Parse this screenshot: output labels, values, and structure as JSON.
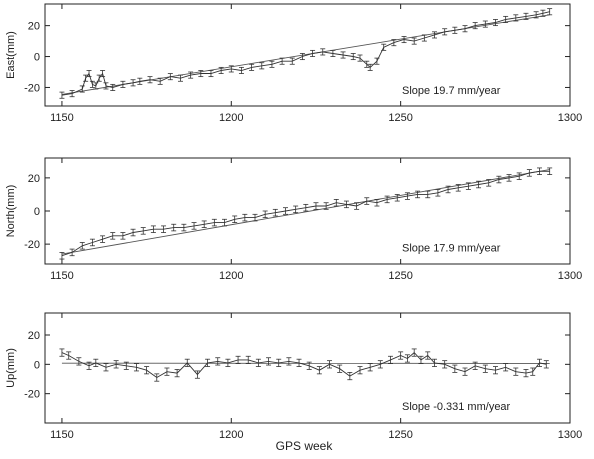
{
  "figure": {
    "xlabel": "GPS week"
  },
  "chart_data": [
    {
      "type": "line",
      "ylabel": "East(mm)",
      "annotation": "Slope 19.7 mm/year",
      "xlim": [
        1145,
        1300
      ],
      "ylim": [
        -32,
        34
      ],
      "xticks": [
        1150,
        1200,
        1250,
        1300
      ],
      "yticks": [
        -20,
        0,
        20
      ],
      "errorbar_mm": 2,
      "series": [
        {
          "role": "observed",
          "x": [
            1150,
            1153,
            1156,
            1157,
            1158,
            1159,
            1160,
            1161,
            1162,
            1163,
            1165,
            1168,
            1171,
            1173,
            1176,
            1179,
            1182,
            1185,
            1188,
            1191,
            1194,
            1197,
            1200,
            1203,
            1206,
            1209,
            1212,
            1215,
            1218,
            1221,
            1224,
            1227,
            1230,
            1233,
            1236,
            1238,
            1240,
            1241,
            1243,
            1245,
            1248,
            1251,
            1254,
            1257,
            1260,
            1263,
            1266,
            1269,
            1272,
            1275,
            1278,
            1281,
            1284,
            1287,
            1290,
            1292,
            1294
          ],
          "y": [
            -25,
            -24,
            -21,
            -14,
            -11,
            -18,
            -19,
            -14,
            -11,
            -19,
            -20,
            -18,
            -17,
            -16,
            -15,
            -16,
            -13,
            -14,
            -12,
            -11,
            -11,
            -9,
            -8,
            -9,
            -7,
            -6,
            -5,
            -3,
            -3,
            0,
            2,
            3,
            2,
            1,
            0,
            -1,
            -5,
            -7,
            -3,
            6,
            9,
            11,
            10,
            12,
            14,
            16,
            17,
            18,
            20,
            21,
            22,
            24,
            25,
            26,
            27,
            28,
            29
          ]
        },
        {
          "role": "fit",
          "x": [
            1150,
            1294
          ],
          "y": [
            -24.5,
            27
          ]
        }
      ]
    },
    {
      "type": "line",
      "ylabel": "North(mm)",
      "annotation": "Slope 17.9 mm/year",
      "xlim": [
        1145,
        1300
      ],
      "ylim": [
        -32,
        32
      ],
      "xticks": [
        1150,
        1200,
        1250,
        1300
      ],
      "yticks": [
        -20,
        0,
        20
      ],
      "errorbar_mm": 2,
      "series": [
        {
          "role": "observed",
          "x": [
            1150,
            1153,
            1156,
            1159,
            1162,
            1165,
            1168,
            1171,
            1174,
            1177,
            1180,
            1183,
            1186,
            1189,
            1192,
            1195,
            1198,
            1201,
            1204,
            1207,
            1210,
            1213,
            1216,
            1219,
            1222,
            1225,
            1228,
            1231,
            1234,
            1237,
            1240,
            1243,
            1246,
            1249,
            1252,
            1255,
            1258,
            1261,
            1264,
            1267,
            1270,
            1273,
            1276,
            1279,
            1282,
            1285,
            1288,
            1291,
            1294
          ],
          "y": [
            -27,
            -25,
            -21,
            -19,
            -17,
            -15,
            -15,
            -13,
            -12,
            -11,
            -11,
            -10,
            -10,
            -9,
            -8,
            -7,
            -7,
            -5,
            -4,
            -4,
            -2,
            -1,
            0,
            1,
            2,
            3,
            3,
            5,
            4,
            3,
            6,
            5,
            7,
            8,
            9,
            10,
            10,
            11,
            13,
            14,
            15,
            16,
            17,
            19,
            20,
            21,
            23,
            24,
            24
          ]
        },
        {
          "role": "fit",
          "x": [
            1150,
            1294
          ],
          "y": [
            -26,
            25
          ]
        }
      ]
    },
    {
      "type": "line",
      "ylabel": "Up(mm)",
      "annotation": "Slope -0.331 mm/year",
      "xlim": [
        1145,
        1300
      ],
      "ylim": [
        -40,
        35
      ],
      "xticks": [
        1150,
        1200,
        1250,
        1300
      ],
      "yticks": [
        -20,
        0,
        20
      ],
      "errorbar_mm": 2.5,
      "series": [
        {
          "role": "observed",
          "x": [
            1150,
            1152,
            1155,
            1158,
            1160,
            1163,
            1166,
            1169,
            1172,
            1175,
            1178,
            1181,
            1184,
            1187,
            1190,
            1193,
            1196,
            1199,
            1202,
            1205,
            1208,
            1211,
            1214,
            1217,
            1220,
            1223,
            1226,
            1229,
            1232,
            1235,
            1238,
            1241,
            1244,
            1247,
            1250,
            1252,
            1254,
            1256,
            1258,
            1260,
            1263,
            1266,
            1269,
            1272,
            1275,
            1278,
            1281,
            1284,
            1287,
            1289,
            1291,
            1293
          ],
          "y": [
            8,
            6,
            2,
            -1,
            1,
            -2,
            0,
            -1,
            -2,
            -4,
            -9,
            -5,
            -6,
            1,
            -7,
            1,
            2,
            1,
            3,
            3,
            1,
            2,
            1,
            2,
            1,
            -1,
            -4,
            0,
            -3,
            -8,
            -4,
            -2,
            0,
            3,
            6,
            4,
            8,
            3,
            6,
            1,
            0,
            -3,
            -5,
            -1,
            -3,
            -4,
            -2,
            -5,
            -6,
            -5,
            1,
            0
          ]
        },
        {
          "role": "fit",
          "x": [
            1150,
            1294
          ],
          "y": [
            0.8,
            0.6
          ]
        }
      ]
    }
  ]
}
